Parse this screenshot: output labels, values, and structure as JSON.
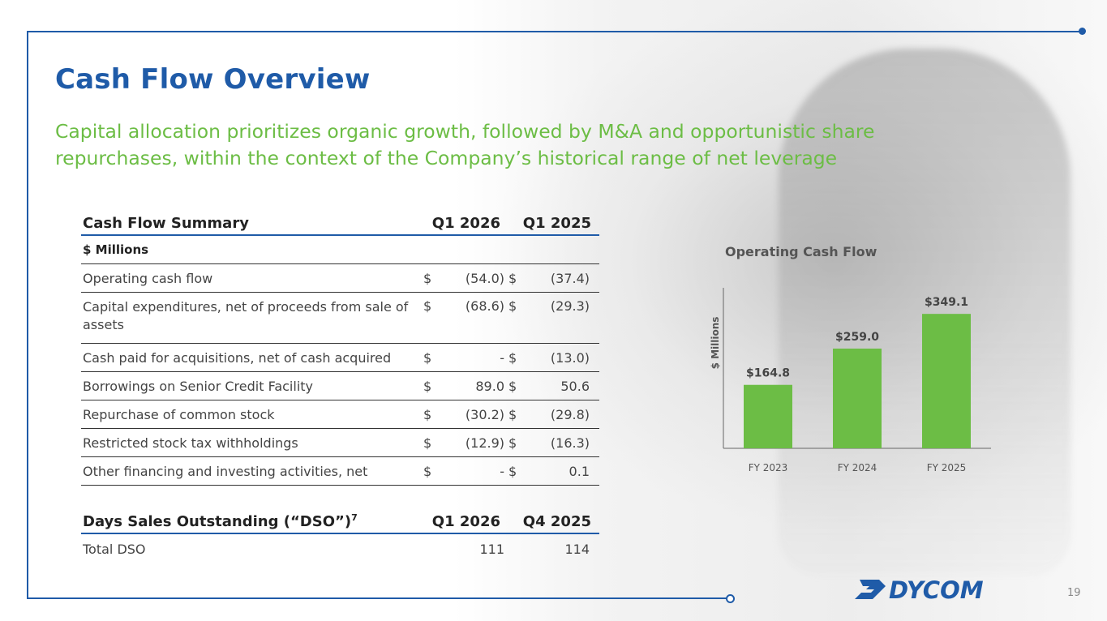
{
  "slide": {
    "title": "Cash Flow Overview",
    "subtitle": "Capital allocation prioritizes organic growth, followed by M&A and opportunistic share repurchases, within the context of the Company’s historical range of net leverage",
    "page_number": "19"
  },
  "cash_flow": {
    "header": {
      "label": "Cash Flow Summary",
      "col1": "Q1 2026",
      "col2": "Q1 2025"
    },
    "units": "$ Millions",
    "rows": [
      {
        "label": "Operating cash flow",
        "d1": "$",
        "v1": "(54.0)",
        "d2": "$",
        "v2": "(37.4)"
      },
      {
        "label": "Capital expenditures, net of proceeds from sale of assets",
        "d1": "$",
        "v1": "(68.6)",
        "d2": "$",
        "v2": "(29.3)"
      },
      {
        "label": "Cash paid for acquisitions, net of cash acquired",
        "d1": "$",
        "v1": "-",
        "d2": "$",
        "v2": "(13.0)"
      },
      {
        "label": "Borrowings on Senior Credit Facility",
        "d1": "$",
        "v1": "89.0",
        "d2": "$",
        "v2": "50.6"
      },
      {
        "label": "Repurchase of common stock",
        "d1": "$",
        "v1": "(30.2)",
        "d2": "$",
        "v2": "(29.8)"
      },
      {
        "label": "Restricted stock tax withholdings",
        "d1": "$",
        "v1": "(12.9)",
        "d2": "$",
        "v2": "(16.3)"
      },
      {
        "label": "Other financing and investing activities, net",
        "d1": "$",
        "v1": "-",
        "d2": "$",
        "v2": "0.1"
      }
    ]
  },
  "dso": {
    "header": {
      "label": "Days Sales Outstanding (“DSO”)",
      "footnote": "7",
      "col1": "Q1 2026",
      "col2": "Q4 2025"
    },
    "rows": [
      {
        "label": "Total DSO",
        "v1": "111",
        "v2": "114"
      }
    ]
  },
  "chart_data": {
    "type": "bar",
    "title": "Operating Cash Flow",
    "ylabel": "$ Millions",
    "xlabel": "",
    "categories": [
      "FY 2023",
      "FY 2024",
      "FY 2025"
    ],
    "values": [
      164.8,
      259.0,
      349.1
    ],
    "value_labels": [
      "$164.8",
      "$259.0",
      "$349.1"
    ],
    "ylim": [
      0,
      400
    ],
    "bar_color": "#6cbd45"
  },
  "logo": {
    "text": "DYCOM"
  },
  "colors": {
    "brand_blue": "#1f5ba8",
    "accent_green": "#6cbd45"
  }
}
